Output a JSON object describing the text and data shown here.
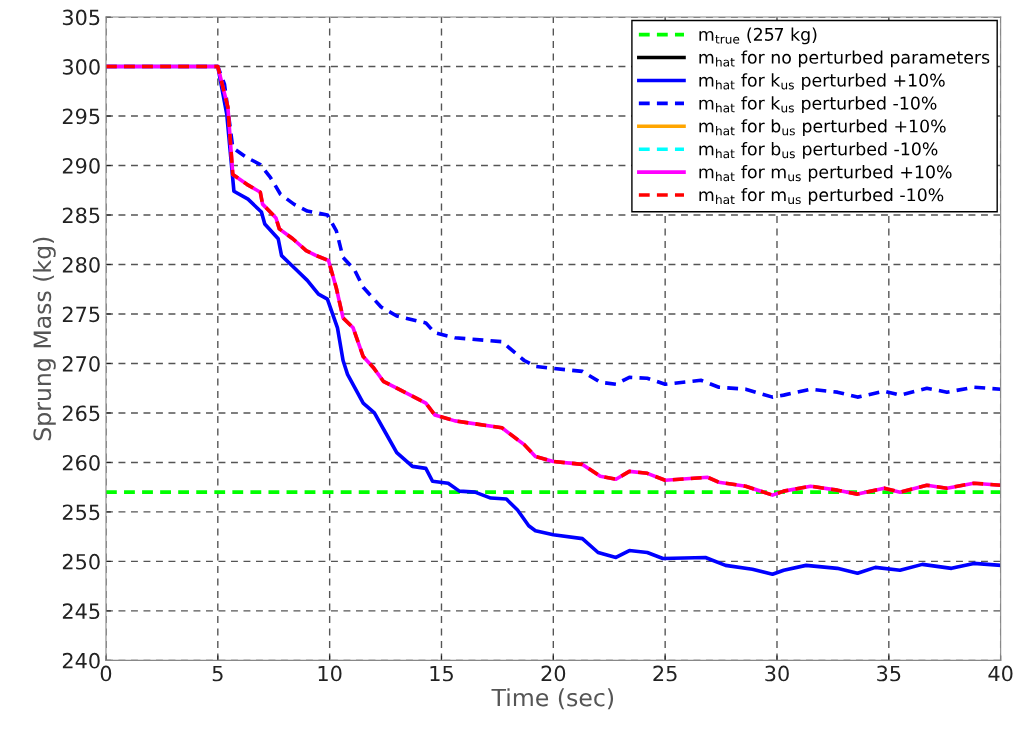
{
  "chart_data": {
    "type": "line",
    "xlabel": "Time (sec)",
    "ylabel": "Sprung Mass (kg)",
    "xlim": [
      0,
      40
    ],
    "ylim": [
      240,
      305
    ],
    "xticks": [
      0,
      5,
      10,
      15,
      20,
      25,
      30,
      35,
      40
    ],
    "yticks": [
      240,
      245,
      250,
      255,
      260,
      265,
      270,
      275,
      280,
      285,
      290,
      295,
      300,
      305
    ],
    "grid": true,
    "legend": "top right",
    "marker": "none",
    "series": [
      {
        "name": "m$_{true}$ (257 kg)",
        "color": "#00ff00",
        "line_style": "dashed",
        "x": [
          0,
          40
        ],
        "values": [
          257,
          257
        ]
      },
      {
        "name": "m$_{hat}$ for no perturbed parameters",
        "color": "#000000",
        "line_style": "solid"
      },
      {
        "name": "m$_{hat}$ for k$_{us}$ perturbed +10%",
        "color": "#0000ff",
        "line_style": "solid",
        "x": [
          0,
          5,
          5.4,
          5.72,
          6.35,
          6.95,
          7.1,
          7.7,
          7.85,
          8.45,
          9.0,
          9.5,
          9.9,
          10.35,
          10.6,
          10.8,
          11.5,
          12.0,
          12.5,
          13.0,
          13.7,
          14.3,
          14.6,
          15.3,
          15.8,
          16.5,
          17.2,
          17.9,
          18.4,
          18.9,
          19.2,
          20,
          21.3,
          22,
          22.8,
          23.4,
          24.2,
          24.9,
          26.8,
          27.7,
          28.9,
          29.8,
          30.3,
          31.3,
          32.7,
          33.6,
          34.4,
          35.5,
          36.5,
          37.8,
          38.8,
          40
        ],
        "values": [
          300,
          300,
          295.2,
          287.4,
          286.6,
          285.3,
          284.1,
          282.6,
          280.9,
          279.6,
          278.4,
          277.0,
          276.5,
          273.6,
          270.3,
          268.9,
          266.0,
          265.0,
          263.0,
          261.0,
          259.6,
          259.4,
          258.1,
          257.9,
          257.1,
          257.0,
          256.4,
          256.3,
          255.2,
          253.6,
          253.1,
          252.7,
          252.3,
          250.9,
          250.4,
          251.1,
          250.9,
          250.3,
          250.4,
          249.6,
          249.2,
          248.7,
          249.1,
          249.6,
          249.3,
          248.8,
          249.4,
          249.1,
          249.7,
          249.3,
          249.8,
          249.6
        ]
      },
      {
        "name": "m$_{hat}$ for k$_{us}$ perturbed -10%",
        "color": "#0000ff",
        "line_style": "dashed",
        "x": [
          0,
          5,
          5.3,
          5.67,
          6.3,
          6.9,
          7.35,
          7.8,
          8.4,
          9.0,
          9.9,
          10.3,
          10.6,
          11.1,
          11.5,
          12.3,
          13.0,
          14.3,
          14.7,
          15.6,
          17.7,
          18.7,
          19.2,
          20,
          21.3,
          22.1,
          22.8,
          23.4,
          24.2,
          25,
          26.6,
          27.4,
          28.6,
          29.8,
          30.3,
          31.5,
          32.7,
          33.6,
          34.8,
          35.5,
          36.7,
          37.6,
          38.8,
          40
        ],
        "values": [
          300,
          300,
          298.2,
          291.8,
          290.8,
          290.1,
          288.8,
          287.1,
          286.1,
          285.4,
          285.0,
          283.4,
          280.7,
          279.5,
          277.7,
          275.7,
          274.8,
          274.1,
          273.1,
          272.6,
          272.2,
          270.3,
          269.7,
          269.5,
          269.2,
          268.1,
          267.9,
          268.6,
          268.5,
          267.9,
          268.3,
          267.6,
          267.4,
          266.6,
          266.8,
          267.4,
          267.1,
          266.6,
          267.2,
          266.8,
          267.5,
          267.1,
          267.6,
          267.4
        ]
      },
      {
        "name": "m$_{hat}$ for b$_{us}$ perturbed +10%",
        "color": "#ffa500",
        "line_style": "solid"
      },
      {
        "name": "m$_{hat}$ for b$_{us}$ perturbed -10%",
        "color": "#00ffff",
        "line_style": "dashed"
      },
      {
        "name": "m$_{hat}$ for m$_{us}$ perturbed +10%",
        "color": "#ff00ff",
        "line_style": "solid",
        "x": [
          0,
          5,
          5.45,
          5.67,
          6.3,
          6.9,
          7.0,
          7.6,
          7.75,
          8.35,
          8.95,
          9.4,
          9.95,
          10.3,
          10.6,
          11.05,
          11.5,
          11.95,
          12.4,
          13.0,
          14.3,
          14.7,
          15.6,
          17.7,
          18.7,
          19.2,
          20,
          21.3,
          22.1,
          22.8,
          23.4,
          24.2,
          25,
          26.9,
          27.4,
          28.6,
          29.8,
          30.3,
          31.5,
          32.7,
          33.6,
          34.8,
          35.5,
          36.7,
          37.6,
          38.8,
          40
        ],
        "values": [
          300,
          300,
          295.9,
          289.1,
          288.1,
          287.3,
          286.1,
          284.7,
          283.6,
          282.6,
          281.4,
          280.9,
          280.4,
          277.6,
          274.6,
          273.6,
          270.7,
          269.6,
          268.2,
          267.5,
          266.0,
          264.8,
          264.2,
          263.5,
          261.8,
          260.6,
          260.1,
          259.8,
          258.6,
          258.3,
          259.1,
          258.9,
          258.2,
          258.5,
          258.0,
          257.6,
          256.7,
          257.1,
          257.6,
          257.2,
          256.8,
          257.4,
          257.0,
          257.7,
          257.4,
          257.9,
          257.7
        ]
      },
      {
        "name": "m$_{hat}$ for m$_{us}$ perturbed -10%",
        "color": "#ff0000",
        "line_style": "dashed",
        "x": [
          0,
          5,
          5.45,
          5.67,
          6.3,
          6.9,
          7.0,
          7.6,
          7.75,
          8.35,
          8.95,
          9.4,
          9.95,
          10.3,
          10.6,
          11.05,
          11.5,
          11.95,
          12.4,
          13.0,
          14.3,
          14.7,
          15.6,
          17.7,
          18.7,
          19.2,
          20,
          21.3,
          22.1,
          22.8,
          23.4,
          24.2,
          25,
          26.9,
          27.4,
          28.6,
          29.8,
          30.3,
          31.5,
          32.7,
          33.6,
          34.8,
          35.5,
          36.7,
          37.6,
          38.8,
          40
        ],
        "values": [
          300,
          300,
          295.9,
          289.1,
          288.1,
          287.3,
          286.1,
          284.7,
          283.6,
          282.6,
          281.4,
          280.9,
          280.4,
          277.6,
          274.6,
          273.6,
          270.7,
          269.6,
          268.2,
          267.5,
          266.0,
          264.8,
          264.2,
          263.5,
          261.8,
          260.6,
          260.1,
          259.8,
          258.6,
          258.3,
          259.1,
          258.9,
          258.2,
          258.5,
          258.0,
          257.6,
          256.7,
          257.1,
          257.6,
          257.2,
          256.8,
          257.4,
          257.0,
          257.7,
          257.4,
          257.9,
          257.7
        ]
      }
    ]
  }
}
